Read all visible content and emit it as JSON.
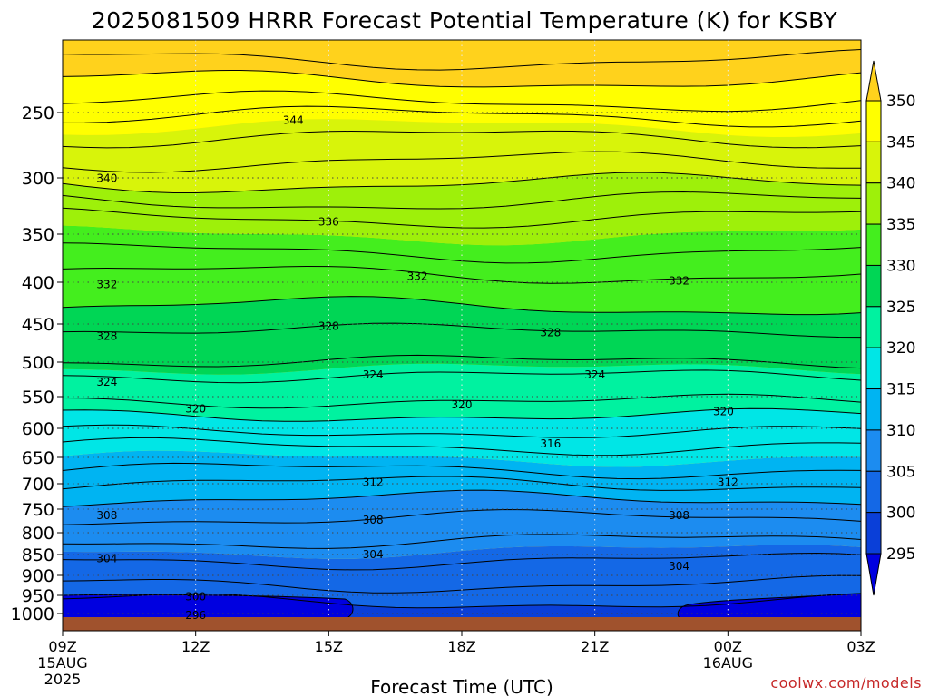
{
  "chart_data": {
    "type": "heatmap",
    "title": "2025081509 HRRR Forecast Potential Temperature (K) for KSBY",
    "xlabel": "Forecast Time (UTC)",
    "credit": "coolwx.com/models",
    "x_ticks": [
      {
        "value": "09Z",
        "sub": [
          "15AUG",
          "2025"
        ]
      },
      {
        "value": "12Z",
        "sub": []
      },
      {
        "value": "15Z",
        "sub": []
      },
      {
        "value": "18Z",
        "sub": []
      },
      {
        "value": "21Z",
        "sub": []
      },
      {
        "value": "00Z",
        "sub": [
          "16AUG"
        ]
      },
      {
        "value": "03Z",
        "sub": []
      }
    ],
    "y_ticks": [
      250,
      300,
      350,
      400,
      450,
      500,
      550,
      600,
      650,
      700,
      750,
      800,
      850,
      900,
      950,
      1000
    ],
    "colorbar": {
      "levels": [
        295,
        300,
        305,
        310,
        315,
        320,
        325,
        330,
        335,
        340,
        345,
        350
      ],
      "colors": [
        "#0000e0",
        "#0a3fd8",
        "#1468e6",
        "#1c8cf0",
        "#00b4f2",
        "#00e6e6",
        "#00f2a0",
        "#00d655",
        "#44ee1e",
        "#9ef00a",
        "#d8f40a",
        "#ffff00",
        "#ffd21c"
      ],
      "extend": "both"
    },
    "contour_labels": [
      {
        "x": 14.2,
        "p": 255,
        "value": "344"
      },
      {
        "x": 10.0,
        "p": 300,
        "value": "340"
      },
      {
        "x": 15.0,
        "p": 338,
        "value": "336"
      },
      {
        "x": 10.0,
        "p": 402,
        "value": "332"
      },
      {
        "x": 17.0,
        "p": 393,
        "value": "332"
      },
      {
        "x": 22.9,
        "p": 398,
        "value": "332"
      },
      {
        "x": 10.0,
        "p": 465,
        "value": "328"
      },
      {
        "x": 15.0,
        "p": 452,
        "value": "328"
      },
      {
        "x": 20.0,
        "p": 460,
        "value": "328"
      },
      {
        "x": 10.0,
        "p": 528,
        "value": "324"
      },
      {
        "x": 16.0,
        "p": 517,
        "value": "324"
      },
      {
        "x": 21.0,
        "p": 517,
        "value": "324"
      },
      {
        "x": 12.0,
        "p": 568,
        "value": "320"
      },
      {
        "x": 18.0,
        "p": 562,
        "value": "320"
      },
      {
        "x": 23.9,
        "p": 572,
        "value": "320"
      },
      {
        "x": 20.0,
        "p": 625,
        "value": "316"
      },
      {
        "x": 16.0,
        "p": 696,
        "value": "312"
      },
      {
        "x": 24.0,
        "p": 696,
        "value": "312"
      },
      {
        "x": 10.0,
        "p": 762,
        "value": "308"
      },
      {
        "x": 16.0,
        "p": 772,
        "value": "308"
      },
      {
        "x": 22.9,
        "p": 762,
        "value": "308"
      },
      {
        "x": 10.0,
        "p": 859,
        "value": "304"
      },
      {
        "x": 16.0,
        "p": 849,
        "value": "304"
      },
      {
        "x": 22.9,
        "p": 877,
        "value": "304"
      },
      {
        "x": 12.0,
        "p": 953,
        "value": "300"
      },
      {
        "x": 12.0,
        "p": 1003,
        "value": "296"
      }
    ]
  },
  "icons": {
    "colorbar_top": "triangle-up-extend",
    "colorbar_bottom": "triangle-down-extend"
  }
}
